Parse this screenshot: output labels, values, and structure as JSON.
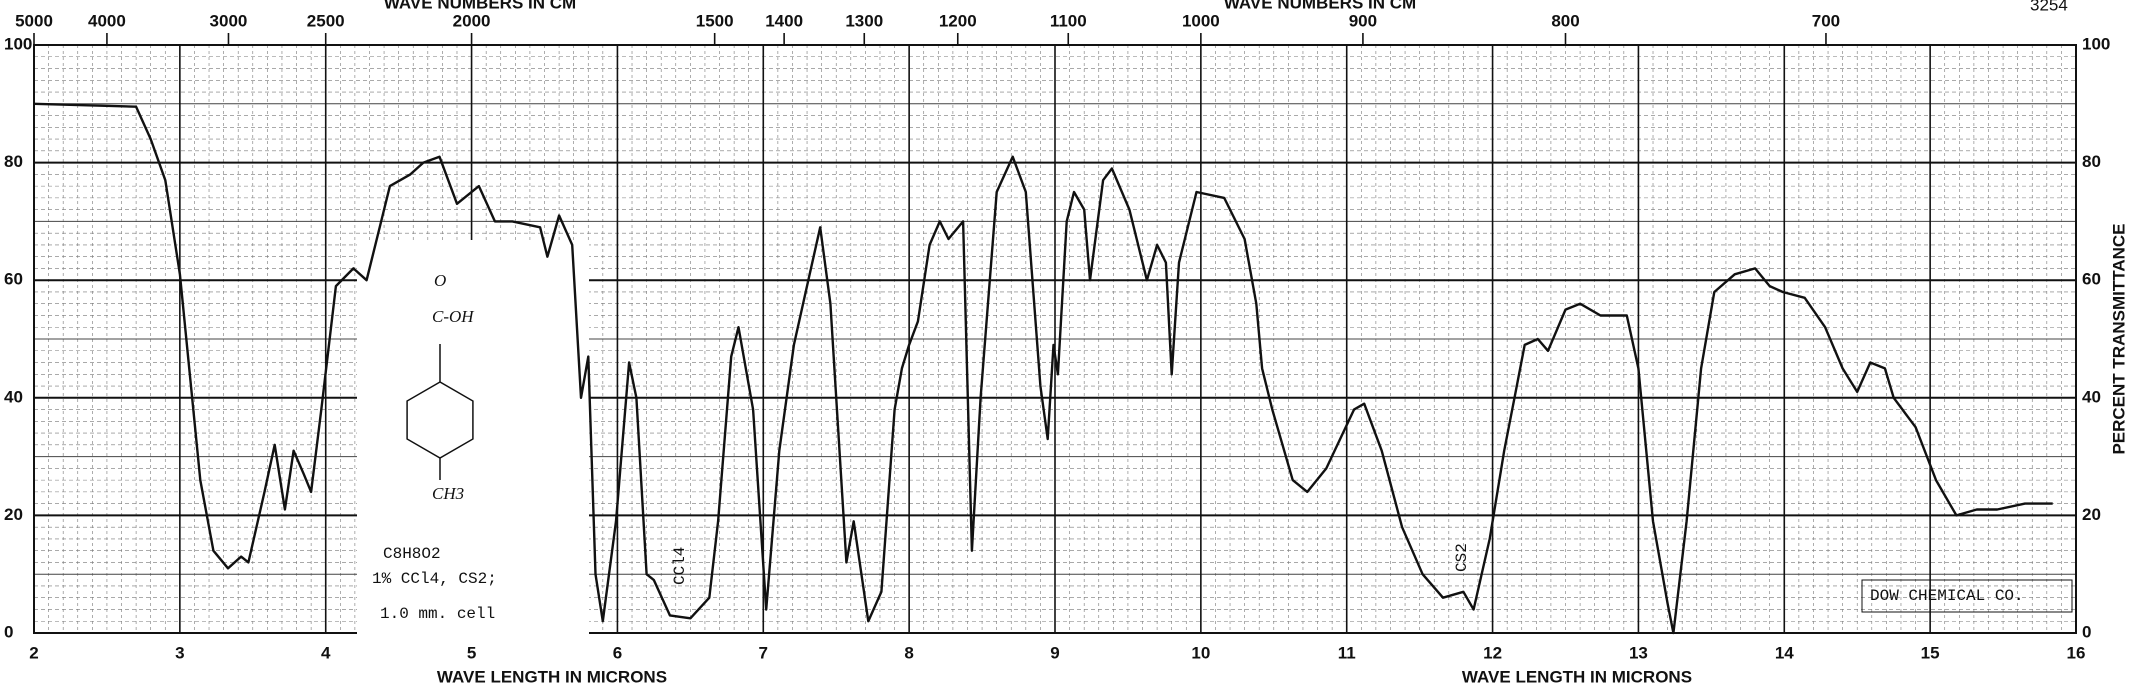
{
  "chart_data": {
    "type": "line",
    "id_number": "3254",
    "top_axis_labels": [
      "WAVE NUMBERS IN CM",
      "WAVE NUMBERS IN CM"
    ],
    "x_axis_labels": [
      "WAVE LENGTH IN MICRONS",
      "WAVE LENGTH IN MICRONS"
    ],
    "y2_axis_label": "PERCENT TRANSMITTANCE",
    "color": "#111111",
    "grid": true,
    "xlim": [
      2,
      16
    ],
    "xticks": [
      2,
      3,
      4,
      5,
      6,
      7,
      8,
      9,
      10,
      11,
      12,
      13,
      14,
      15,
      16
    ],
    "top_ticks": [
      5000,
      4000,
      3000,
      2500,
      2000,
      1500,
      1400,
      1300,
      1200,
      1100,
      1000,
      900,
      800,
      700
    ],
    "ylim": [
      0,
      100
    ],
    "yticks": [
      0,
      20,
      40,
      60,
      80,
      100
    ],
    "structure": [
      "O",
      "C-OH",
      "CH3"
    ],
    "annotations": [
      "C8H8O2",
      "1% CCl4, CS2;",
      "1.0 mm. cell",
      "CCl4",
      "CS2",
      "DOW CHEMICAL CO."
    ],
    "x": [
      2.0,
      2.7,
      2.8,
      2.9,
      3.0,
      3.14,
      3.23,
      3.33,
      3.42,
      3.47,
      3.58,
      3.65,
      3.72,
      3.78,
      3.85,
      3.9,
      3.97,
      4.07,
      4.19,
      4.28,
      4.44,
      4.58,
      4.67,
      4.78,
      4.9,
      5.05,
      5.16,
      5.28,
      5.47,
      5.52,
      5.6,
      5.69,
      5.75,
      5.8,
      5.85,
      5.9,
      5.99,
      6.08,
      6.13,
      6.2,
      6.25,
      6.36,
      6.5,
      6.63,
      6.69,
      6.78,
      6.83,
      6.93,
      7.02,
      7.11,
      7.21,
      7.3,
      7.39,
      7.46,
      7.57,
      7.62,
      7.72,
      7.81,
      7.9,
      7.95,
      8.0,
      8.06,
      8.14,
      8.21,
      8.27,
      8.37,
      8.43,
      8.49,
      8.6,
      8.71,
      8.8,
      8.9,
      8.95,
      8.99,
      9.02,
      9.08,
      9.13,
      9.2,
      9.24,
      9.33,
      9.39,
      9.51,
      9.63,
      9.7,
      9.76,
      9.8,
      9.85,
      9.97,
      10.16,
      10.3,
      10.38,
      10.42,
      10.49,
      10.63,
      10.73,
      10.86,
      11.05,
      11.12,
      11.24,
      11.38,
      11.52,
      11.66,
      11.8,
      11.87,
      11.98,
      12.08,
      12.15,
      12.22,
      12.31,
      12.38,
      12.5,
      12.6,
      12.74,
      12.92,
      13.0,
      13.1,
      13.2,
      13.24,
      13.33,
      13.43,
      13.52,
      13.66,
      13.8,
      13.9,
      13.99,
      14.14,
      14.28,
      14.4,
      14.5,
      14.59,
      14.69,
      14.75,
      14.9,
      15.04,
      15.18,
      15.32,
      15.46,
      15.65,
      15.84
    ],
    "values": [
      90,
      89.5,
      84,
      77,
      61,
      26,
      14,
      11,
      13,
      12,
      24,
      32,
      21,
      31,
      27,
      24,
      38,
      59,
      62,
      60,
      76,
      78,
      80,
      81,
      73,
      76,
      70,
      70,
      69,
      64,
      71,
      66,
      40,
      47,
      10,
      2,
      19,
      46,
      40,
      10,
      9,
      3,
      2.5,
      6,
      19,
      47,
      52,
      38,
      4,
      31,
      49,
      59,
      69,
      56,
      12,
      19,
      2,
      7,
      38,
      45,
      49,
      53,
      66,
      70,
      67,
      70,
      14,
      40,
      75,
      81,
      75,
      42,
      33,
      49,
      44,
      70,
      75,
      72,
      60,
      77,
      79,
      72,
      60,
      66,
      63,
      44,
      63,
      75,
      74,
      67,
      56,
      45,
      38,
      26,
      24,
      28,
      38,
      39,
      31,
      18,
      10,
      6,
      7,
      4,
      16,
      31,
      40,
      49,
      50,
      48,
      55,
      56,
      54,
      54,
      45,
      19,
      5,
      0,
      19,
      45,
      58,
      61,
      62,
      59,
      58,
      57,
      52,
      45,
      41,
      46,
      45,
      40,
      35,
      26,
      20,
      21,
      21,
      22,
      22
    ]
  }
}
